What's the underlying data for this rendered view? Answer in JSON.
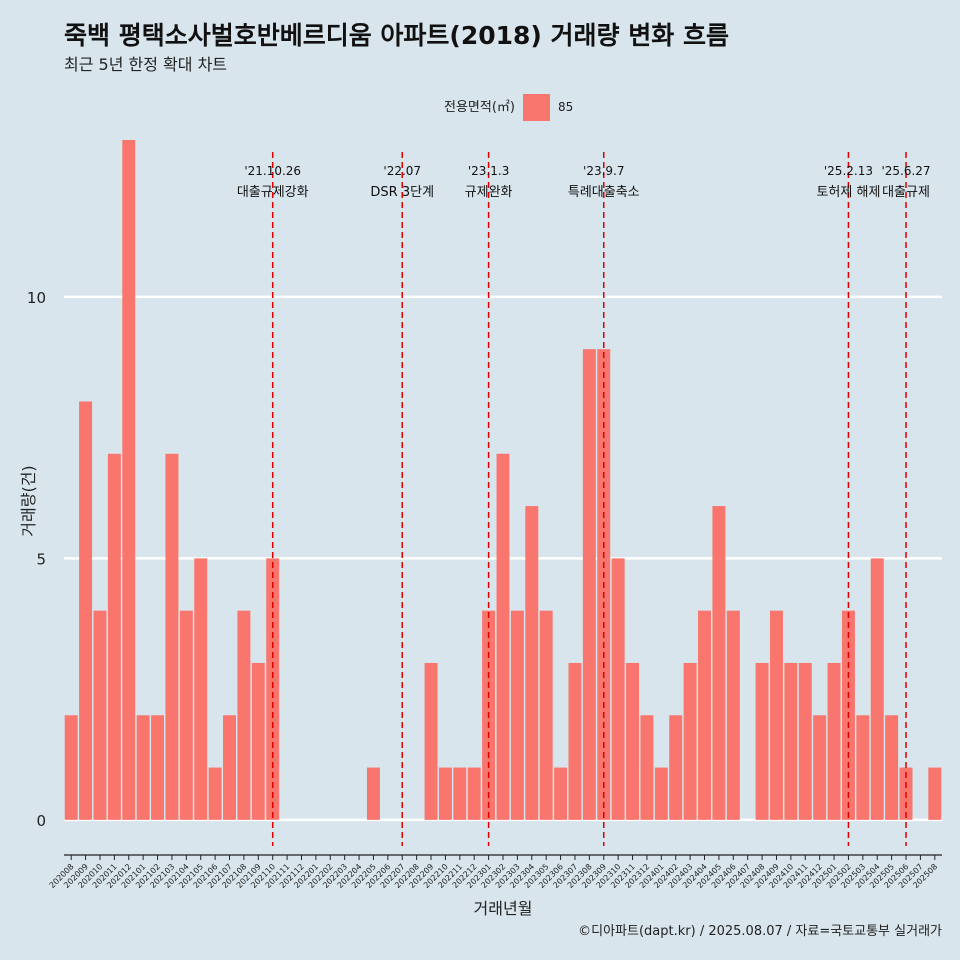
{
  "chart_data": {
    "type": "bar",
    "title": "죽백 평택소사벌호반베르디움 아파트(2018) 거래량 변화 흐름",
    "subtitle": "최근 5년 한정 확대 차트",
    "xlabel": "거래년월",
    "ylabel": "거래량(건)",
    "legend_title": "전용면적(㎡)",
    "legend_position": "top",
    "grid": "horizontal",
    "ylim": [
      -0.5,
      13
    ],
    "yticks": [
      0,
      5,
      10
    ],
    "caption": "©디아파트(dapt.kr) / 2025.08.07 / 자료=국토교통부 실거래가",
    "categories": [
      "202008",
      "202009",
      "202010",
      "202011",
      "202012",
      "202101",
      "202102",
      "202103",
      "202104",
      "202105",
      "202106",
      "202107",
      "202108",
      "202109",
      "202110",
      "202111",
      "202112",
      "202201",
      "202202",
      "202203",
      "202204",
      "202205",
      "202206",
      "202207",
      "202208",
      "202209",
      "202210",
      "202211",
      "202212",
      "202301",
      "202302",
      "202303",
      "202304",
      "202305",
      "202306",
      "202307",
      "202308",
      "202309",
      "202310",
      "202311",
      "202312",
      "202401",
      "202402",
      "202403",
      "202404",
      "202405",
      "202406",
      "202407",
      "202408",
      "202409",
      "202410",
      "202411",
      "202412",
      "202501",
      "202502",
      "202503",
      "202504",
      "202505",
      "202506",
      "202507",
      "202508"
    ],
    "series": [
      {
        "name": "85",
        "color": "#f8766d",
        "values": [
          2,
          8,
          4,
          7,
          13,
          2,
          2,
          7,
          4,
          5,
          1,
          2,
          4,
          3,
          5,
          0,
          0,
          0,
          0,
          0,
          0,
          1,
          0,
          0,
          0,
          3,
          1,
          1,
          1,
          4,
          7,
          4,
          6,
          4,
          1,
          3,
          9,
          9,
          5,
          3,
          2,
          1,
          2,
          3,
          4,
          6,
          4,
          0,
          3,
          4,
          3,
          3,
          2,
          3,
          4,
          2,
          5,
          2,
          1,
          0,
          1
        ]
      }
    ],
    "annotations": [
      {
        "at": "202110",
        "date": "'21.10.26",
        "label": "대출규제강화"
      },
      {
        "at": "202207",
        "date": "'22.07",
        "label": "DSR 3단계"
      },
      {
        "at": "202301",
        "date": "'23.1.3",
        "label": "규제완화"
      },
      {
        "at": "202309",
        "date": "'23.9.7",
        "label": "특례대출축소"
      },
      {
        "at": "202502",
        "date": "'25.2.13",
        "label": "토허제 해제"
      },
      {
        "at": "202506",
        "date": "'25.6.27",
        "label": "대출규제"
      }
    ],
    "annotation_color": "#e00000"
  }
}
